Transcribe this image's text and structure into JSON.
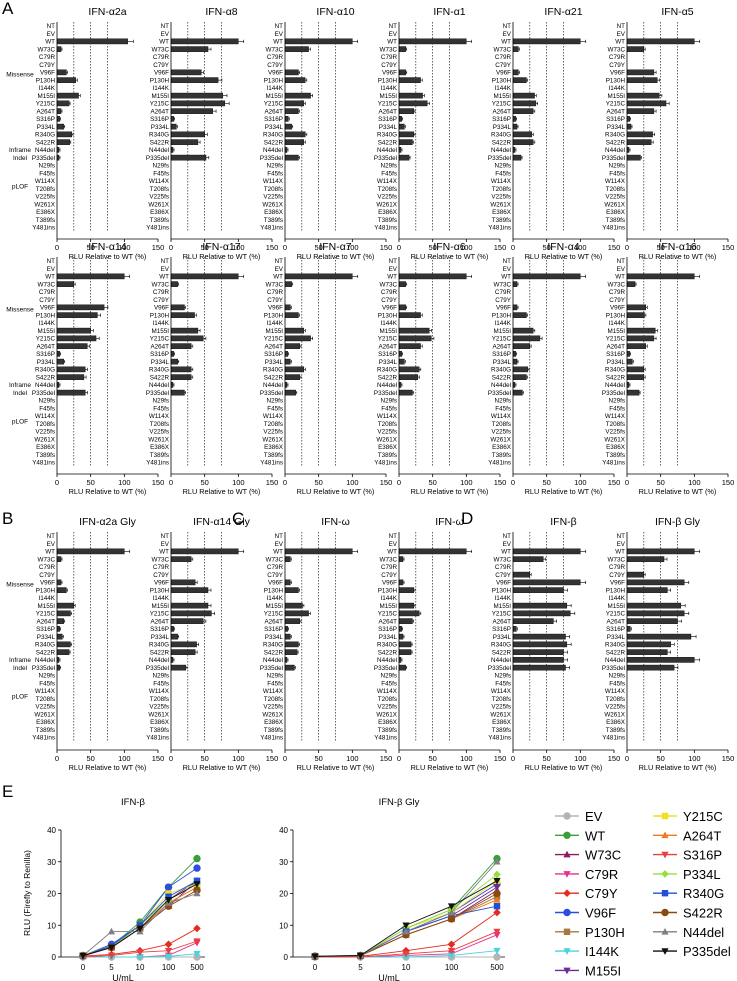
{
  "figure": {
    "panel_labels": [
      "A",
      "B",
      "C",
      "D",
      "E"
    ],
    "group_labels": [
      "Missense",
      "Inframe Indel",
      "pLOF"
    ],
    "xlabel": "RLU Relative to WT (%)",
    "xticks": [
      0,
      50,
      100,
      150
    ],
    "reference_lines": [
      25,
      50,
      75
    ]
  },
  "chart_data": [
    {
      "type": "bar",
      "orientation": "horizontal",
      "categories": [
        "NT",
        "EV",
        "WT",
        "W73C",
        "C79R",
        "C79Y",
        "V96F",
        "P130H",
        "I144K",
        "M155I",
        "Y215C",
        "A264T",
        "S316P",
        "P334L",
        "R340G",
        "S422R",
        "N44del",
        "P335del",
        "N29fs",
        "F45fs",
        "W114X",
        "T208fs",
        "V225fs",
        "W261X",
        "E386X",
        "T389fs",
        "Y481ins"
      ],
      "xlim": [
        0,
        150
      ],
      "xlabel": "RLU Relative to WT (%)",
      "panels": [
        {
          "title": "IFN-α2a",
          "values": [
            0,
            0,
            105,
            6,
            0,
            0,
            14,
            28,
            0,
            32,
            18,
            6,
            4,
            10,
            22,
            19,
            3,
            3,
            0,
            0,
            0,
            0,
            0,
            0,
            0,
            0,
            0
          ]
        },
        {
          "title": "IFN-α8",
          "values": [
            0,
            0,
            100,
            55,
            0,
            0,
            45,
            70,
            0,
            77,
            80,
            62,
            4,
            8,
            50,
            40,
            3,
            52,
            0,
            0,
            0,
            0,
            0,
            0,
            0,
            0,
            0
          ]
        },
        {
          "title": "IFN-α10",
          "values": [
            0,
            0,
            100,
            35,
            0,
            0,
            20,
            30,
            0,
            38,
            28,
            20,
            5,
            10,
            30,
            28,
            3,
            20,
            0,
            0,
            0,
            0,
            0,
            0,
            0,
            0,
            0
          ]
        },
        {
          "title": "IFN-α1",
          "values": [
            0,
            0,
            100,
            10,
            0,
            0,
            10,
            32,
            0,
            35,
            42,
            22,
            4,
            8,
            22,
            20,
            3,
            15,
            0,
            0,
            0,
            0,
            0,
            0,
            0,
            0,
            0
          ]
        },
        {
          "title": "IFN-α21",
          "values": [
            0,
            0,
            100,
            8,
            0,
            0,
            8,
            20,
            0,
            32,
            34,
            30,
            4,
            6,
            28,
            30,
            3,
            12,
            0,
            0,
            0,
            0,
            0,
            0,
            0,
            0,
            0
          ]
        },
        {
          "title": "IFN-α5",
          "values": [
            0,
            0,
            100,
            25,
            0,
            0,
            40,
            45,
            0,
            48,
            58,
            40,
            4,
            6,
            38,
            36,
            3,
            20,
            0,
            0,
            0,
            0,
            0,
            0,
            0,
            0,
            0
          ]
        },
        {
          "title": "IFN-α14",
          "values": [
            0,
            0,
            100,
            25,
            0,
            0,
            70,
            60,
            0,
            50,
            58,
            45,
            4,
            10,
            42,
            40,
            3,
            42,
            0,
            0,
            0,
            0,
            0,
            0,
            0,
            0,
            0
          ]
        },
        {
          "title": "IFN-α17",
          "values": [
            0,
            0,
            100,
            10,
            0,
            0,
            20,
            35,
            0,
            40,
            48,
            30,
            4,
            10,
            30,
            30,
            3,
            20,
            0,
            0,
            0,
            0,
            0,
            0,
            0,
            0,
            0
          ]
        },
        {
          "title": "IFN-α7",
          "values": [
            0,
            0,
            100,
            10,
            0,
            0,
            8,
            20,
            0,
            28,
            38,
            22,
            4,
            8,
            28,
            22,
            3,
            16,
            0,
            0,
            0,
            0,
            0,
            0,
            0,
            0,
            0
          ]
        },
        {
          "title": "IFN-α6",
          "values": [
            0,
            0,
            100,
            10,
            0,
            0,
            10,
            32,
            0,
            45,
            48,
            32,
            4,
            8,
            30,
            28,
            3,
            20,
            0,
            0,
            0,
            0,
            0,
            0,
            0,
            0,
            0
          ]
        },
        {
          "title": "IFN-α4",
          "values": [
            0,
            0,
            100,
            6,
            0,
            0,
            6,
            20,
            0,
            30,
            40,
            25,
            4,
            6,
            22,
            20,
            3,
            14,
            0,
            0,
            0,
            0,
            0,
            0,
            0,
            0,
            0
          ]
        },
        {
          "title": "IFN-α16",
          "values": [
            0,
            0,
            100,
            12,
            0,
            0,
            28,
            26,
            0,
            42,
            40,
            28,
            4,
            8,
            25,
            25,
            3,
            18,
            0,
            0,
            0,
            0,
            0,
            0,
            0,
            0,
            0
          ]
        },
        {
          "title": "IFN-α2a Gly",
          "values": [
            0,
            0,
            100,
            6,
            0,
            0,
            6,
            14,
            0,
            25,
            20,
            10,
            4,
            8,
            20,
            18,
            3,
            4,
            0,
            0,
            0,
            0,
            0,
            0,
            0,
            0,
            0
          ]
        },
        {
          "title": "IFN-α14 Gly",
          "values": [
            0,
            0,
            100,
            30,
            0,
            0,
            36,
            55,
            0,
            55,
            60,
            48,
            4,
            10,
            38,
            36,
            3,
            22,
            0,
            0,
            0,
            0,
            0,
            0,
            0,
            0,
            0
          ]
        },
        {
          "title": "IFN-ω",
          "values": [
            0,
            0,
            100,
            8,
            0,
            0,
            8,
            20,
            0,
            26,
            35,
            22,
            4,
            8,
            20,
            18,
            3,
            14,
            0,
            0,
            0,
            0,
            0,
            0,
            0,
            0,
            0
          ]
        },
        {
          "title": "IFN-ω",
          "values": [
            0,
            0,
            100,
            6,
            0,
            0,
            6,
            22,
            0,
            22,
            30,
            20,
            4,
            6,
            18,
            18,
            3,
            10,
            0,
            0,
            0,
            0,
            0,
            0,
            0,
            0,
            0
          ]
        },
        {
          "title": "IFN-β",
          "values": [
            0,
            0,
            100,
            45,
            0,
            25,
            100,
            75,
            0,
            80,
            85,
            60,
            5,
            78,
            80,
            75,
            75,
            78,
            0,
            0,
            0,
            0,
            0,
            0,
            0,
            0,
            0
          ]
        },
        {
          "title": "IFN-β Gly",
          "values": [
            0,
            0,
            100,
            55,
            0,
            25,
            85,
            60,
            0,
            80,
            85,
            75,
            5,
            95,
            65,
            60,
            100,
            70,
            0,
            0,
            0,
            0,
            0,
            0,
            0,
            0,
            0
          ]
        }
      ]
    },
    {
      "type": "line",
      "x": [
        "0",
        "5",
        "10",
        "100",
        "500"
      ],
      "xlabel": "U/mL",
      "ylabel": "RLU (Firefly to Renilla)",
      "ylim": [
        0,
        40
      ],
      "yticks": [
        0,
        10,
        20,
        30,
        40
      ],
      "panels": [
        {
          "title": "IFN-β",
          "series": [
            {
              "name": "EV",
              "color": "#b4b4b4",
              "marker": "circle",
              "values": [
                0,
                0,
                0,
                0,
                0
              ]
            },
            {
              "name": "WT",
              "color": "#3a9e3a",
              "marker": "circle",
              "values": [
                0.5,
                3.5,
                11,
                22,
                31
              ]
            },
            {
              "name": "W73C",
              "color": "#8b1a5e",
              "marker": "triangle",
              "values": [
                0.3,
                3,
                9,
                16,
                24
              ]
            },
            {
              "name": "C79R",
              "color": "#e8308c",
              "marker": "triangle-down",
              "values": [
                0,
                0,
                0,
                0.5,
                4.5
              ]
            },
            {
              "name": "C79Y",
              "color": "#e32b1e",
              "marker": "diamond",
              "values": [
                0.3,
                0.8,
                2,
                4,
                9
              ]
            },
            {
              "name": "V96F",
              "color": "#2c4de0",
              "marker": "circle",
              "values": [
                0.4,
                4,
                10,
                22,
                28
              ]
            },
            {
              "name": "P130H",
              "color": "#a87840",
              "marker": "square",
              "values": [
                0.4,
                3,
                9,
                17,
                22
              ]
            },
            {
              "name": "I144K",
              "color": "#45d4e0",
              "marker": "triangle-down",
              "values": [
                0,
                0,
                0,
                0.2,
                1
              ]
            },
            {
              "name": "M155I",
              "color": "#6a2c9c",
              "marker": "triangle-down",
              "values": [
                0.4,
                3,
                10,
                18,
                24
              ]
            },
            {
              "name": "Y215C",
              "color": "#f0e020",
              "marker": "square",
              "values": [
                0.5,
                3.5,
                10,
                20,
                23
              ]
            },
            {
              "name": "A264T",
              "color": "#f07820",
              "marker": "triangle",
              "values": [
                0.4,
                3,
                9,
                17,
                22
              ]
            },
            {
              "name": "S316P",
              "color": "#e84040",
              "marker": "triangle-down",
              "values": [
                0,
                0.5,
                1.5,
                2,
                5
              ]
            },
            {
              "name": "P334L",
              "color": "#90e040",
              "marker": "diamond",
              "values": [
                0.4,
                3,
                10,
                18,
                23
              ]
            },
            {
              "name": "R340G",
              "color": "#2050d8",
              "marker": "square",
              "values": [
                0.4,
                3.5,
                10,
                19,
                24
              ]
            },
            {
              "name": "S422R",
              "color": "#8a4a10",
              "marker": "circle",
              "values": [
                0.4,
                3,
                9,
                16,
                21
              ]
            },
            {
              "name": "N44del",
              "color": "#808080",
              "marker": "triangle",
              "values": [
                0.4,
                8,
                8,
                17,
                20
              ]
            },
            {
              "name": "P335del",
              "color": "#111111",
              "marker": "triangle-down",
              "values": [
                0.4,
                3,
                9,
                18,
                23
              ]
            }
          ]
        },
        {
          "title": "IFN-β Gly",
          "series": [
            {
              "name": "EV",
              "color": "#b4b4b4",
              "marker": "circle",
              "values": [
                0,
                0,
                0,
                0,
                0
              ]
            },
            {
              "name": "WT",
              "color": "#3a9e3a",
              "marker": "circle",
              "values": [
                0.3,
                0.5,
                9,
                15,
                31
              ]
            },
            {
              "name": "W73C",
              "color": "#8b1a5e",
              "marker": "triangle",
              "values": [
                0.2,
                0.4,
                7,
                12,
                21
              ]
            },
            {
              "name": "C79R",
              "color": "#e8308c",
              "marker": "triangle-down",
              "values": [
                0,
                0,
                0.5,
                1,
                7
              ]
            },
            {
              "name": "C79Y",
              "color": "#e32b1e",
              "marker": "diamond",
              "values": [
                0,
                0.2,
                2,
                4,
                14
              ]
            },
            {
              "name": "V96F",
              "color": "#2c4de0",
              "marker": "circle",
              "values": [
                0.2,
                0.5,
                8,
                14,
                23
              ]
            },
            {
              "name": "P130H",
              "color": "#a87840",
              "marker": "square",
              "values": [
                0.2,
                0.4,
                7,
                12,
                19
              ]
            },
            {
              "name": "I144K",
              "color": "#45d4e0",
              "marker": "triangle-down",
              "values": [
                0,
                0,
                0,
                0.5,
                2
              ]
            },
            {
              "name": "M155I",
              "color": "#6a2c9c",
              "marker": "triangle-down",
              "values": [
                0.2,
                0.4,
                8,
                13,
                22
              ]
            },
            {
              "name": "Y215C",
              "color": "#f0e020",
              "marker": "square",
              "values": [
                0.2,
                0.5,
                9,
                14,
                24
              ]
            },
            {
              "name": "A264T",
              "color": "#f07820",
              "marker": "triangle",
              "values": [
                0.2,
                0.4,
                7,
                12,
                18
              ]
            },
            {
              "name": "S316P",
              "color": "#e84040",
              "marker": "triangle-down",
              "values": [
                0,
                0,
                1,
                2,
                8
              ]
            },
            {
              "name": "P334L",
              "color": "#90e040",
              "marker": "diamond",
              "values": [
                0.2,
                0.5,
                9,
                15,
                26
              ]
            },
            {
              "name": "R340G",
              "color": "#2050d8",
              "marker": "square",
              "values": [
                0.2,
                0.4,
                8,
                13,
                16
              ]
            },
            {
              "name": "S422R",
              "color": "#8a4a10",
              "marker": "circle",
              "values": [
                0.2,
                0.4,
                7,
                12,
                20
              ]
            },
            {
              "name": "N44del",
              "color": "#808080",
              "marker": "triangle",
              "values": [
                0.2,
                0.5,
                8,
                14,
                30
              ]
            },
            {
              "name": "P335del",
              "color": "#111111",
              "marker": "triangle-down",
              "values": [
                0.2,
                0.5,
                10,
                16,
                24
              ]
            }
          ]
        }
      ]
    }
  ]
}
